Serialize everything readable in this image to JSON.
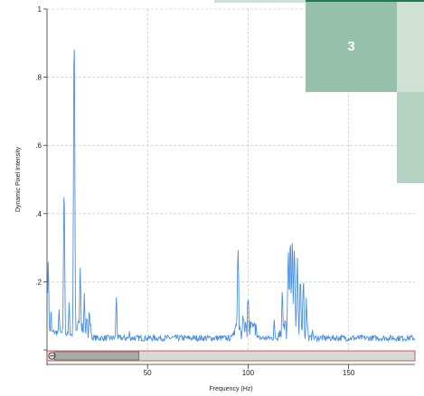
{
  "chart_data": {
    "type": "line",
    "title": "",
    "xlabel": "Frequency (Hz)",
    "ylabel": "Dynamic Pixel Intensity",
    "xlim": [
      0,
      183
    ],
    "ylim": [
      0,
      1
    ],
    "xticks": [
      50,
      100,
      150
    ],
    "xtick_labels": [
      "50",
      "100",
      "150"
    ],
    "yticks": [
      0.2,
      0.4,
      0.6,
      0.8,
      1.0
    ],
    "ytick_labels": [
      ".2",
      ".4",
      ".6",
      ".8",
      "1"
    ],
    "grid": true,
    "line_color": "#4a90e2",
    "baseline": 0.035,
    "peaks": [
      {
        "x": 0.6,
        "y": 0.26
      },
      {
        "x": 2.0,
        "y": 0.12
      },
      {
        "x": 6.0,
        "y": 0.12
      },
      {
        "x": 8.5,
        "y": 0.475
      },
      {
        "x": 11.0,
        "y": 0.14
      },
      {
        "x": 13.5,
        "y": 0.935
      },
      {
        "x": 16.5,
        "y": 0.195
      },
      {
        "x": 18.5,
        "y": 0.12
      },
      {
        "x": 21.0,
        "y": 0.08
      },
      {
        "x": 34.5,
        "y": 0.155
      },
      {
        "x": 41.0,
        "y": 0.055
      },
      {
        "x": 93.5,
        "y": 0.06
      },
      {
        "x": 95.0,
        "y": 0.26
      },
      {
        "x": 97.5,
        "y": 0.1
      },
      {
        "x": 100.0,
        "y": 0.135
      },
      {
        "x": 104.0,
        "y": 0.07
      },
      {
        "x": 113.0,
        "y": 0.09
      },
      {
        "x": 117.0,
        "y": 0.14
      },
      {
        "x": 120.0,
        "y": 0.26
      },
      {
        "x": 121.0,
        "y": 0.3
      },
      {
        "x": 122.0,
        "y": 0.285
      },
      {
        "x": 123.0,
        "y": 0.27
      },
      {
        "x": 124.5,
        "y": 0.25
      },
      {
        "x": 126.0,
        "y": 0.2
      },
      {
        "x": 127.5,
        "y": 0.17
      },
      {
        "x": 129.0,
        "y": 0.12
      },
      {
        "x": 132.0,
        "y": 0.06
      }
    ]
  },
  "scrollbar": {
    "button_icon": "minus-circle-icon",
    "thumb_start": 0.02,
    "thumb_end": 0.25
  },
  "overlay": {
    "label": "3",
    "colors": {
      "dark_bar": "#1e7a52",
      "tile_main": "#96c0aa",
      "tile_light": "#cfe1d5",
      "tile_mid": "#b5d1c1"
    }
  }
}
